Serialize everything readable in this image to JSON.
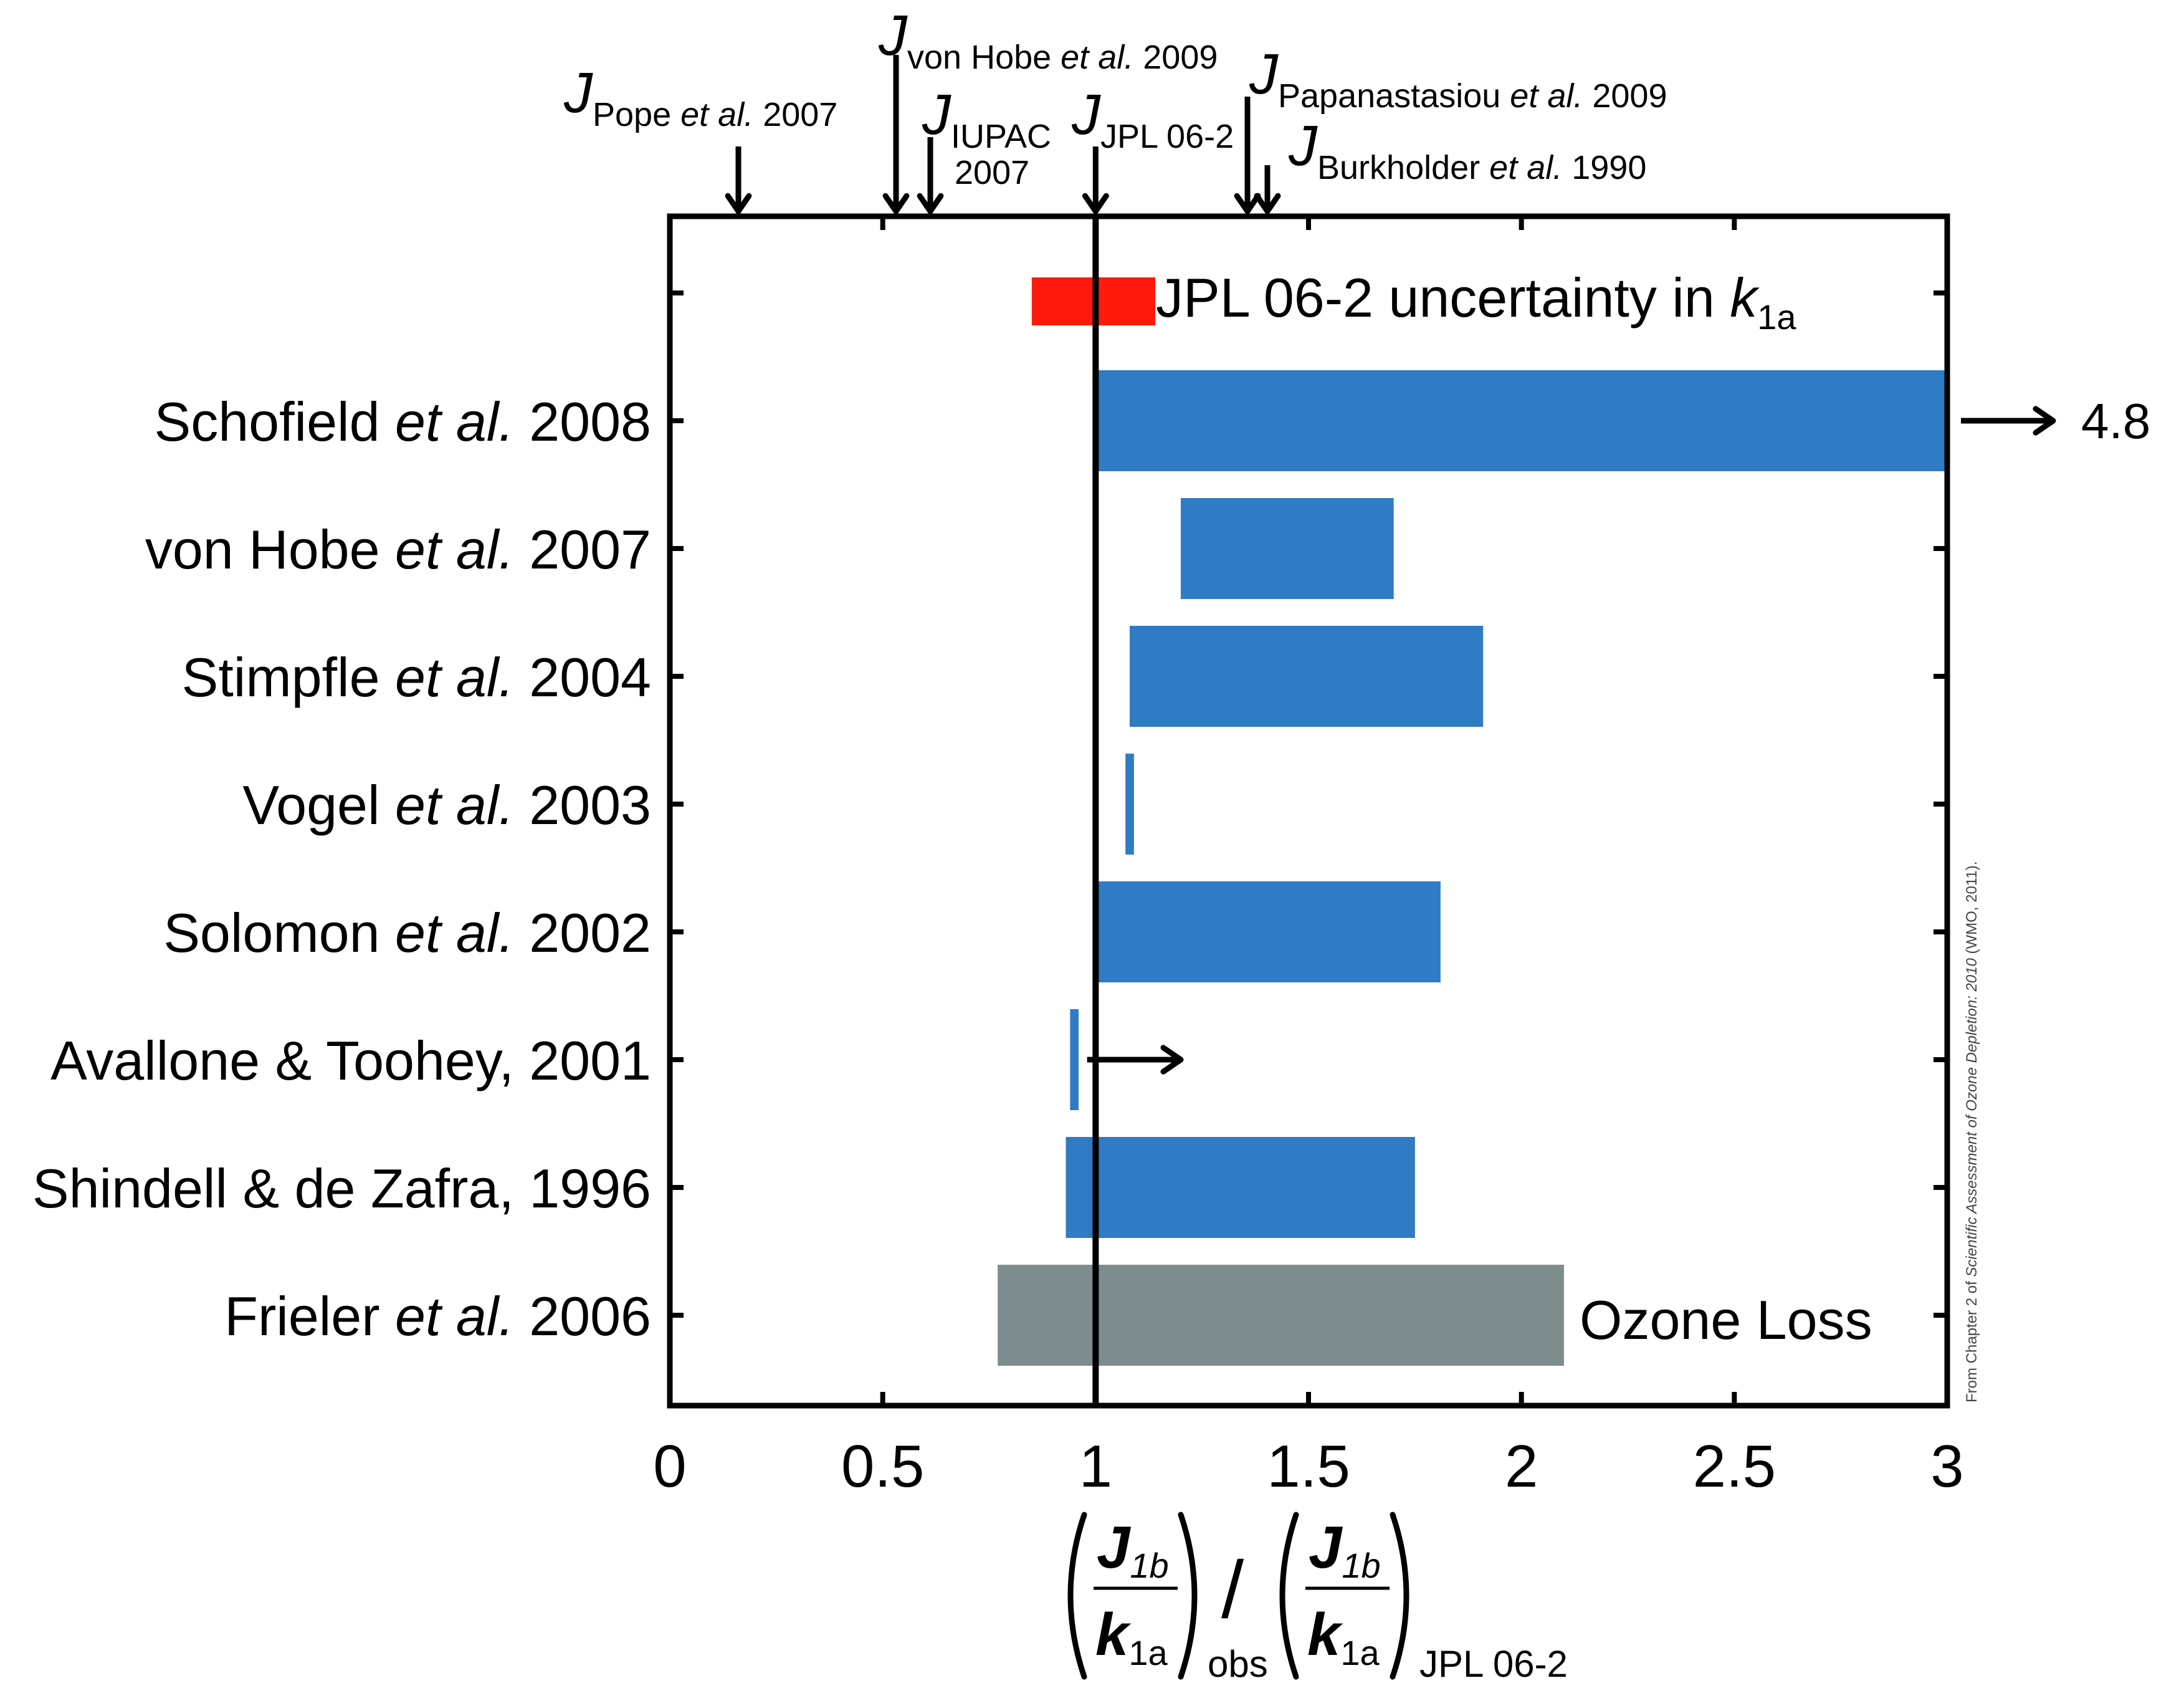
{
  "chart_data": {
    "type": "bar",
    "orientation": "horizontal-range",
    "xlim": [
      0,
      3
    ],
    "xticks": [
      "0",
      "0.5",
      "1",
      "1.5",
      "2",
      "2.5",
      "3"
    ],
    "xtick_values": [
      0,
      0.5,
      1,
      1.5,
      2,
      2.5,
      3
    ],
    "reference_line_x": 1,
    "grid": false,
    "xlabel": {
      "frac1_num": "J",
      "frac1_num_sub": "1b",
      "frac1_den": "k",
      "frac1_den_sub": "1a",
      "frac1_outer_sub": "obs",
      "slash": "/",
      "frac2_num": "J",
      "frac2_num_sub": "1b",
      "frac2_den": "k",
      "frac2_den_sub": "1a",
      "frac2_outer_sub": "JPL 06-2"
    },
    "uncertainty": {
      "prefix": "JPL 06-2 uncertainty in ",
      "symbol": "k",
      "symbol_sub": "1a",
      "x_start": 0.85,
      "x_end": 1.14,
      "color": "#ff1a0d"
    },
    "rows": [
      {
        "author": "Schofield ",
        "etal": "et al.",
        "year": " 2008",
        "x_start": 1.0,
        "x_end": 3.0,
        "color": "#2f7bc4",
        "arrow_label": "4.8"
      },
      {
        "author": "von Hobe ",
        "etal": "et al.",
        "year": " 2007",
        "x_start": 1.2,
        "x_end": 1.7,
        "color": "#2f7bc4"
      },
      {
        "author": "Stimpfle ",
        "etal": "et al.",
        "year": " 2004",
        "x_start": 1.08,
        "x_end": 1.91,
        "color": "#2f7bc4"
      },
      {
        "author": "Vogel ",
        "etal": "et al.",
        "year": " 2003",
        "x_start": 1.07,
        "x_end": 1.09,
        "color": "#2f7bc4"
      },
      {
        "author": "Solomon ",
        "etal": "et al.",
        "year": " 2002",
        "x_start": 1.0,
        "x_end": 1.81,
        "color": "#2f7bc4"
      },
      {
        "author": "Avallone & Toohey, 2001",
        "etal": "",
        "year": "",
        "x_start": 0.94,
        "x_end": 0.96,
        "color": "#2f7bc4",
        "arrow_from": 0.98,
        "arrow_to": 1.2
      },
      {
        "author": "Shindell & de Zafra, 1996",
        "etal": "",
        "year": "",
        "x_start": 0.93,
        "x_end": 1.75,
        "color": "#2f7bc4"
      },
      {
        "author": "Frieler ",
        "etal": "et al.",
        "year": " 2006",
        "x_start": 0.77,
        "x_end": 2.1,
        "color": "#7d8c8c",
        "note": "Ozone Loss"
      }
    ],
    "top_markers": [
      {
        "label": "Pope ",
        "etal": "et al.",
        "year": " 2007",
        "x": 0.17
      },
      {
        "label": "von Hobe ",
        "etal": "et al.",
        "year": " 2009",
        "x": 0.55
      },
      {
        "label": "IUPAC",
        "etal": "",
        "year": "2007",
        "x": 0.62
      },
      {
        "label": "JPL 06-2",
        "etal": "",
        "year": "",
        "x": 1.0
      },
      {
        "label": "Papanastasiou ",
        "etal": "et al.",
        "year": " 2009",
        "x": 1.37
      },
      {
        "label": "Burkholder ",
        "etal": "et al.",
        "year": " 1990",
        "x": 1.41
      }
    ],
    "marker_symbol": "J"
  },
  "credit": {
    "part1": "From Chapter 2 of ",
    "italic": "Scientific Assessment of Ozone Depletion: 2010",
    "part2": " (WMO, 2011)."
  }
}
